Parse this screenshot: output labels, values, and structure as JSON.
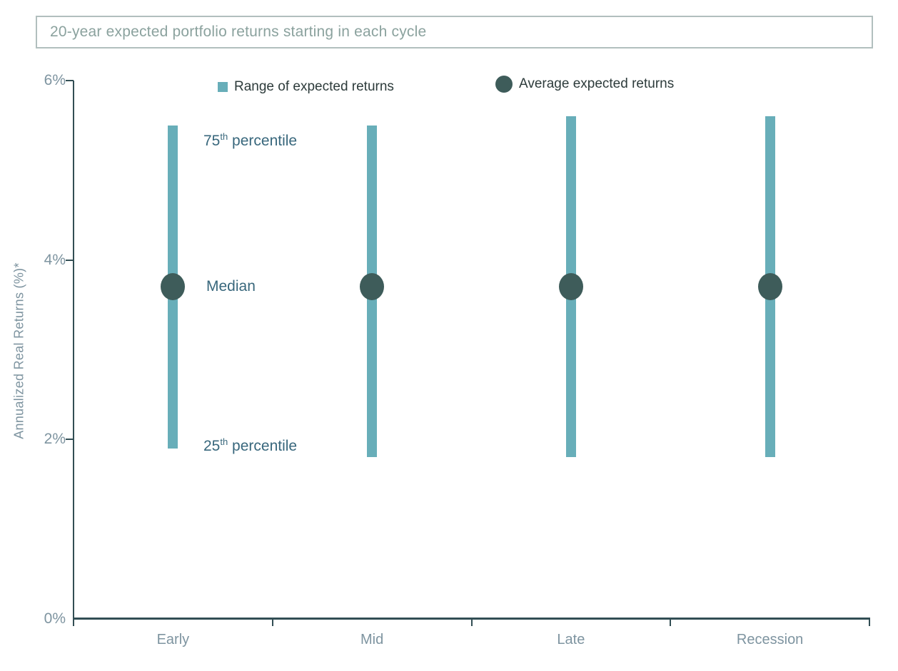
{
  "title": "20-year expected portfolio returns starting in each cycle",
  "legend": [
    {
      "label": "Range of expected returns",
      "swatch": "teal-square"
    },
    {
      "label": "Average expected returns",
      "swatch": "dark-circle"
    }
  ],
  "annotations": {
    "p75": {
      "num": "75",
      "sup": "th",
      "rest": " percentile"
    },
    "median": {
      "label": "Median"
    },
    "p25": {
      "num": "25",
      "sup": "th",
      "rest": " percentile"
    }
  },
  "chart_data": {
    "type": "bar",
    "subtype": "floating-range-bars-with-median-dots",
    "title": "20-year expected portfolio returns starting in each cycle",
    "categories": [
      "Early",
      "Mid",
      "Late",
      "Recession"
    ],
    "series": [
      {
        "name": "Range of expected returns",
        "type": "range-bar",
        "low": [
          1.9,
          1.8,
          1.8,
          1.8
        ],
        "high": [
          5.5,
          5.5,
          5.6,
          5.6
        ]
      },
      {
        "name": "Average expected returns",
        "type": "dot",
        "values": [
          3.7,
          3.7,
          3.7,
          3.7
        ]
      }
    ],
    "xlabel": "",
    "ylabel": "Annualized Real Returns (%)*",
    "ylim": [
      0,
      6
    ],
    "yticks": [
      "0%",
      "2%",
      "4%",
      "6%"
    ],
    "grid": false,
    "legend_position": "top",
    "colors": {
      "range_bar": "#68aeb9",
      "average_dot": "#3e5c5a",
      "axis_line": "#324e54",
      "axis_text": "#7e94a0",
      "annotation_text": "#38677c",
      "legend_text": "#2d3b3b",
      "title_text": "#8ba29e",
      "title_border": "#b2bfbe"
    }
  }
}
